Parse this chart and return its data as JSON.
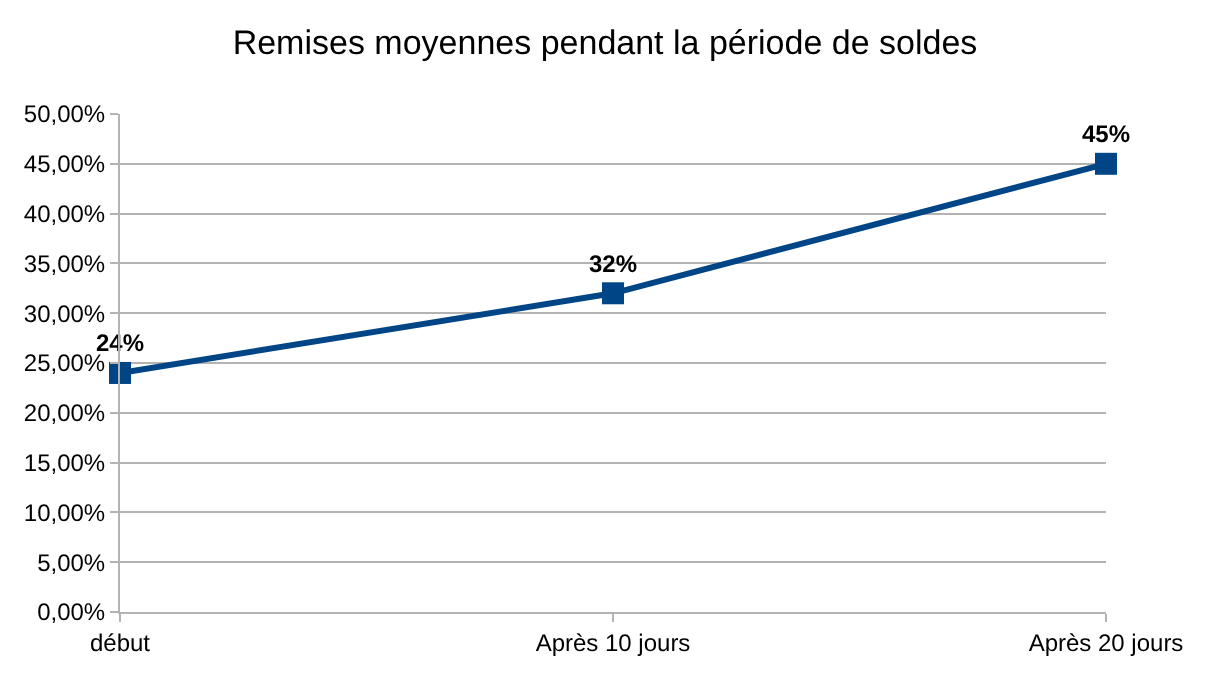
{
  "chart_data": {
    "type": "line",
    "title": "Remises moyennes pendant la période de soldes",
    "categories": [
      "début",
      "Après 10 jours",
      "Après 20 jours"
    ],
    "series": [
      {
        "color": "#004586",
        "values": [
          24,
          32,
          45
        ],
        "value_labels": [
          "24%",
          "32%",
          "45%"
        ]
      }
    ],
    "ylim": [
      0,
      50
    ],
    "yticks": [
      {
        "value": 0,
        "label": "0,00%"
      },
      {
        "value": 5,
        "label": "5,00%"
      },
      {
        "value": 10,
        "label": "10,00%"
      },
      {
        "value": 15,
        "label": "15,00%"
      },
      {
        "value": 20,
        "label": "20,00%"
      },
      {
        "value": 25,
        "label": "25,00%"
      },
      {
        "value": 30,
        "label": "30,00%"
      },
      {
        "value": 35,
        "label": "35,00%"
      },
      {
        "value": 40,
        "label": "40,00%"
      },
      {
        "value": 45,
        "label": "45,00%"
      },
      {
        "value": 50,
        "label": "50,00%"
      }
    ],
    "grid": "y",
    "marker": "square",
    "line_style": "solid"
  }
}
